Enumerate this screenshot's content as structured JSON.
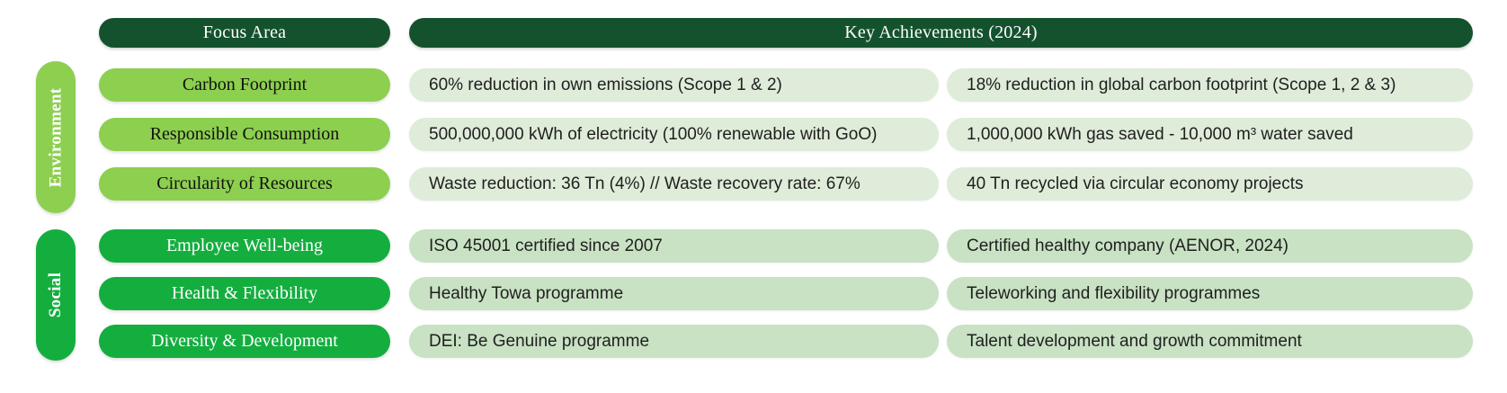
{
  "palette": {
    "header_dark_green": "#14522e",
    "environment_green": "#8dcf4f",
    "social_green": "#14ae3f",
    "environment_achievement_bg": "#deecd9",
    "social_achievement_bg": "#c8e2c3",
    "header_text": "#ffffff",
    "achievement_text": "#1f1f1f"
  },
  "header": {
    "focus_area": "Focus Area",
    "key_achievements": "Key Achievements (2024)"
  },
  "sections": [
    {
      "label": "Environment",
      "color": "#8dcf4f"
    },
    {
      "label": "Social",
      "color": "#14ae3f"
    }
  ],
  "rows": [
    {
      "section": "Environment",
      "focus": "Carbon Footprint",
      "achievement_1": "60% reduction in own emissions (Scope 1 & 2)",
      "achievement_2": "18% reduction in global carbon footprint (Scope 1, 2 & 3)"
    },
    {
      "section": "Environment",
      "focus": "Responsible Consumption",
      "achievement_1": "500,000,000 kWh of electricity (100% renewable with GoO)",
      "achievement_2": "1,000,000 kWh gas saved - 10,000 m³ water saved"
    },
    {
      "section": "Environment",
      "focus": "Circularity of Resources",
      "achievement_1": "Waste reduction: 36 Tn (4%) // Waste recovery rate: 67%",
      "achievement_2": "40 Tn recycled via circular economy projects"
    },
    {
      "section": "Social",
      "focus": "Employee Well-being",
      "achievement_1": "ISO 45001 certified since 2007",
      "achievement_2": "Certified healthy company (AENOR, 2024)"
    },
    {
      "section": "Social",
      "focus": "Health & Flexibility",
      "achievement_1": "Healthy Towa programme",
      "achievement_2": "Teleworking and flexibility programmes"
    },
    {
      "section": "Social",
      "focus": "Diversity & Development",
      "achievement_1": "DEI: Be Genuine programme",
      "achievement_2": "Talent development and growth commitment"
    }
  ]
}
